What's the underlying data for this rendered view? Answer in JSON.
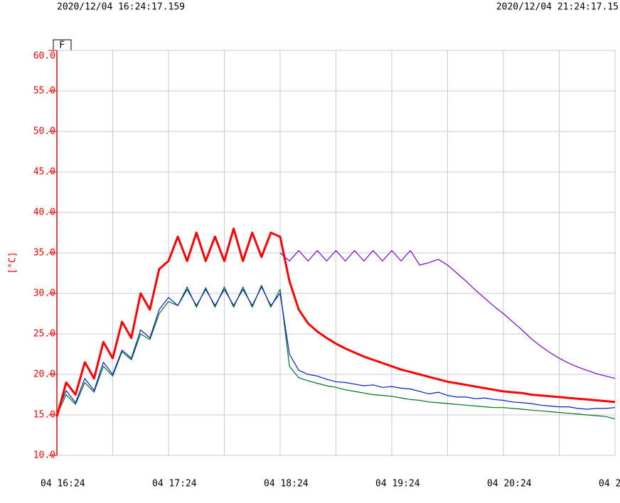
{
  "header": {
    "start": "2020/12/04 16:24:17.159",
    "end": "2020/12/04 21:24:17.15"
  },
  "chart_data": {
    "type": "line",
    "tab": "F",
    "y_label": "[°C]",
    "x": [
      "16:24",
      "16:29",
      "16:34",
      "16:39",
      "16:44",
      "16:49",
      "16:54",
      "16:59",
      "17:04",
      "17:09",
      "17:14",
      "17:19",
      "17:24",
      "17:29",
      "17:34",
      "17:39",
      "17:44",
      "17:49",
      "17:54",
      "17:59",
      "18:04",
      "18:09",
      "18:14",
      "18:19",
      "18:24",
      "18:29",
      "18:34",
      "18:39",
      "18:44",
      "18:49",
      "18:54",
      "18:59",
      "19:04",
      "19:09",
      "19:14",
      "19:19",
      "19:24",
      "19:29",
      "19:34",
      "19:39",
      "19:44",
      "19:49",
      "19:54",
      "19:59",
      "20:04",
      "20:09",
      "20:14",
      "20:19",
      "20:24",
      "20:29",
      "20:34",
      "20:39",
      "20:44",
      "20:49",
      "20:54",
      "20:59",
      "21:04",
      "21:09",
      "21:14",
      "21:19",
      "21:24"
    ],
    "xlim": [
      "16:24",
      "21:24"
    ],
    "xticks": [
      {
        "value": "16:24",
        "label": "04 16:24"
      },
      {
        "value": "17:24",
        "label": "04 17:24"
      },
      {
        "value": "18:24",
        "label": "04 18:24"
      },
      {
        "value": "19:24",
        "label": "04 19:24"
      },
      {
        "value": "20:24",
        "label": "04 20:24"
      },
      {
        "value": "21:24",
        "label": "04 2"
      }
    ],
    "ylim": [
      10,
      60
    ],
    "yticks": [
      {
        "value": 10,
        "label": "10.0"
      },
      {
        "value": 15,
        "label": "15.0"
      },
      {
        "value": 20,
        "label": "20.0"
      },
      {
        "value": 25,
        "label": "25.0"
      },
      {
        "value": 30,
        "label": "30.0"
      },
      {
        "value": 35,
        "label": "35.0"
      },
      {
        "value": 40,
        "label": "40.0"
      },
      {
        "value": 45,
        "label": "45.0"
      },
      {
        "value": 50,
        "label": "50.0"
      },
      {
        "value": 55,
        "label": "55.0"
      },
      {
        "value": 60,
        "label": "60.0"
      }
    ],
    "grid": true,
    "series": [
      {
        "color": "#7a00c8",
        "width": 1.2,
        "values": [
          null,
          null,
          null,
          null,
          null,
          null,
          null,
          null,
          null,
          null,
          null,
          null,
          null,
          null,
          null,
          null,
          null,
          null,
          null,
          null,
          null,
          null,
          null,
          null,
          35.0,
          34.0,
          35.3,
          34.0,
          35.3,
          34.0,
          35.3,
          34.0,
          35.3,
          34.0,
          35.3,
          34.0,
          35.3,
          34.0,
          35.3,
          33.5,
          33.8,
          34.2,
          33.5,
          32.5,
          31.5,
          30.4,
          29.4,
          28.4,
          27.5,
          26.5,
          25.5,
          24.4,
          23.5,
          22.7,
          22.0,
          21.4,
          20.9,
          20.5,
          20.1,
          19.8,
          19.5
        ]
      },
      {
        "color": "#007020",
        "width": 1.2,
        "values": [
          15.0,
          17.5,
          16.3,
          19.0,
          17.8,
          21.0,
          19.8,
          22.8,
          21.8,
          25.0,
          24.3,
          27.5,
          29.0,
          28.5,
          30.8,
          28.3,
          30.7,
          28.3,
          30.8,
          28.3,
          30.8,
          28.3,
          31.0,
          28.3,
          30.5,
          21.0,
          19.6,
          19.2,
          18.9,
          18.6,
          18.4,
          18.1,
          17.9,
          17.7,
          17.5,
          17.4,
          17.3,
          17.1,
          16.9,
          16.8,
          16.6,
          16.5,
          16.4,
          16.3,
          16.2,
          16.1,
          16.0,
          15.9,
          15.9,
          15.8,
          15.7,
          15.6,
          15.5,
          15.4,
          15.3,
          15.2,
          15.1,
          15.0,
          14.9,
          14.8,
          14.5
        ]
      },
      {
        "color": "#0020c0",
        "width": 1.2,
        "values": [
          15.2,
          18.0,
          16.5,
          19.5,
          18.0,
          21.5,
          20.0,
          23.0,
          22.0,
          25.5,
          24.5,
          28.0,
          29.5,
          28.5,
          30.5,
          28.5,
          30.5,
          28.5,
          30.5,
          28.5,
          30.5,
          28.5,
          30.8,
          28.5,
          30.0,
          22.5,
          20.5,
          20.0,
          19.8,
          19.4,
          19.1,
          19.0,
          18.8,
          18.6,
          18.7,
          18.4,
          18.5,
          18.3,
          18.2,
          17.9,
          17.6,
          17.8,
          17.4,
          17.2,
          17.2,
          17.0,
          17.1,
          16.9,
          16.8,
          16.6,
          16.5,
          16.4,
          16.2,
          16.1,
          16.0,
          16.0,
          15.8,
          15.7,
          15.8,
          15.8,
          15.9
        ]
      },
      {
        "color": "#ff0000",
        "width": 3,
        "values": [
          14.8,
          19.0,
          17.5,
          21.5,
          19.5,
          24.0,
          22.0,
          26.5,
          24.5,
          30.0,
          28.0,
          33.0,
          34.0,
          37.0,
          34.0,
          37.5,
          34.0,
          37.0,
          34.0,
          38.0,
          34.0,
          37.5,
          34.5,
          37.5,
          37.0,
          31.5,
          28.0,
          26.3,
          25.3,
          24.5,
          23.8,
          23.2,
          22.7,
          22.2,
          21.8,
          21.4,
          21.0,
          20.6,
          20.3,
          20.0,
          19.7,
          19.4,
          19.1,
          18.9,
          18.7,
          18.5,
          18.3,
          18.1,
          17.9,
          17.8,
          17.7,
          17.5,
          17.4,
          17.3,
          17.2,
          17.1,
          17.0,
          16.9,
          16.8,
          16.7,
          16.6
        ]
      }
    ]
  }
}
